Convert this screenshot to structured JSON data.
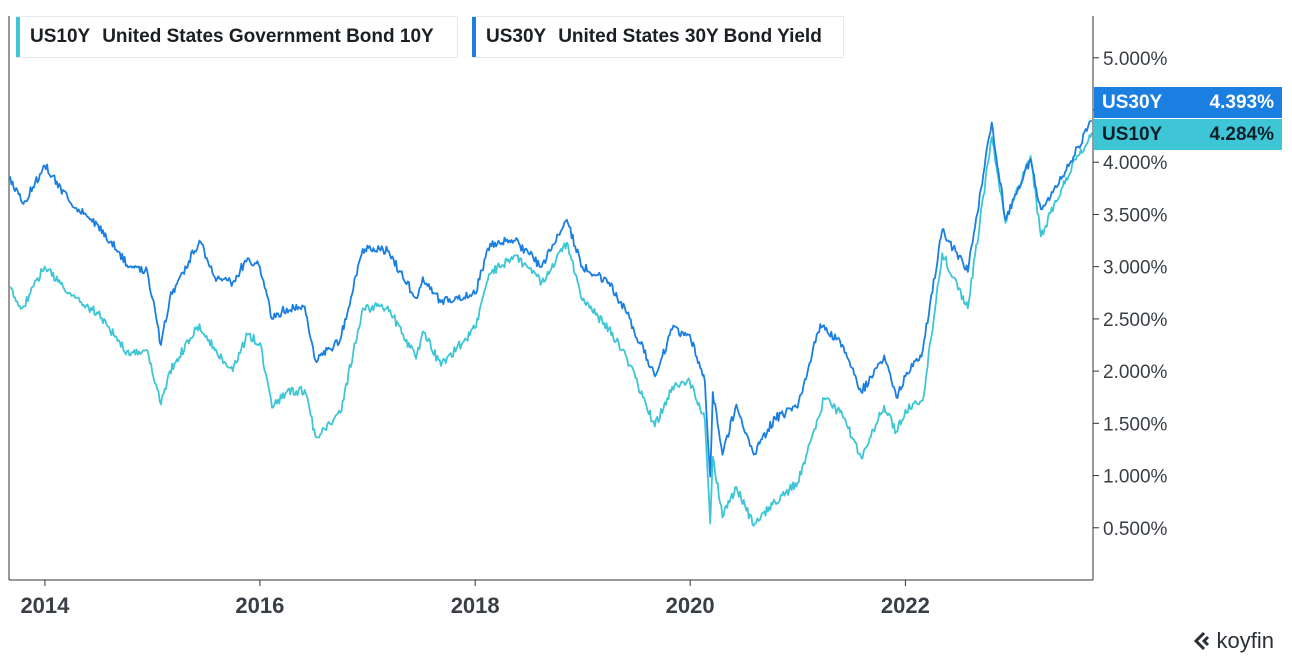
{
  "brand": {
    "name": "koyfin"
  },
  "chart_data": {
    "type": "line",
    "x_range": [
      "2013-09-01",
      "2023-09-30"
    ],
    "ylim": [
      0.0,
      5.4
    ],
    "y_ticks": [
      0.5,
      1.0,
      1.5,
      2.0,
      2.5,
      3.0,
      3.5,
      4.0,
      4.5,
      5.0
    ],
    "y_tick_labels": [
      "0.500%",
      "1.000%",
      "1.500%",
      "2.000%",
      "2.500%",
      "3.000%",
      "3.500%",
      "4.000%",
      "",
      "5.000%"
    ],
    "x_ticks": [
      "2014-01-01",
      "2016-01-01",
      "2018-01-01",
      "2020-01-01",
      "2022-01-01"
    ],
    "x_tick_labels": [
      "2014",
      "2016",
      "2018",
      "2020",
      "2022"
    ],
    "grid": false,
    "legend_position": "top-left",
    "series": [
      {
        "code": "US10Y",
        "name": "United States Government Bond 10Y",
        "color": "#3ec6d6",
        "last_value": "4.284%",
        "points": [
          [
            "2013-09-01",
            2.8
          ],
          [
            "2013-10-15",
            2.6
          ],
          [
            "2013-12-31",
            3.0
          ],
          [
            "2014-04-01",
            2.72
          ],
          [
            "2014-07-01",
            2.55
          ],
          [
            "2014-10-15",
            2.15
          ],
          [
            "2014-12-15",
            2.2
          ],
          [
            "2015-01-30",
            1.68
          ],
          [
            "2015-03-01",
            2.0
          ],
          [
            "2015-06-10",
            2.45
          ],
          [
            "2015-08-01",
            2.2
          ],
          [
            "2015-10-01",
            2.0
          ],
          [
            "2015-11-20",
            2.35
          ],
          [
            "2016-01-01",
            2.27
          ],
          [
            "2016-02-11",
            1.65
          ],
          [
            "2016-04-01",
            1.8
          ],
          [
            "2016-06-01",
            1.82
          ],
          [
            "2016-07-08",
            1.37
          ],
          [
            "2016-09-30",
            1.6
          ],
          [
            "2016-12-15",
            2.6
          ],
          [
            "2017-03-10",
            2.62
          ],
          [
            "2017-06-14",
            2.12
          ],
          [
            "2017-07-07",
            2.38
          ],
          [
            "2017-09-07",
            2.05
          ],
          [
            "2017-12-31",
            2.41
          ],
          [
            "2018-02-21",
            2.93
          ],
          [
            "2018-05-17",
            3.11
          ],
          [
            "2018-08-15",
            2.85
          ],
          [
            "2018-11-08",
            3.23
          ],
          [
            "2018-12-31",
            2.68
          ],
          [
            "2019-03-31",
            2.41
          ],
          [
            "2019-06-01",
            2.12
          ],
          [
            "2019-09-03",
            1.47
          ],
          [
            "2019-11-01",
            1.85
          ],
          [
            "2019-12-31",
            1.9
          ],
          [
            "2020-02-20",
            1.53
          ],
          [
            "2020-03-09",
            0.54
          ],
          [
            "2020-03-18",
            1.18
          ],
          [
            "2020-04-20",
            0.6
          ],
          [
            "2020-06-06",
            0.89
          ],
          [
            "2020-08-04",
            0.52
          ],
          [
            "2020-10-15",
            0.75
          ],
          [
            "2020-12-31",
            0.93
          ],
          [
            "2021-03-31",
            1.74
          ],
          [
            "2021-06-01",
            1.58
          ],
          [
            "2021-08-04",
            1.17
          ],
          [
            "2021-10-21",
            1.67
          ],
          [
            "2021-12-01",
            1.42
          ],
          [
            "2022-01-01",
            1.63
          ],
          [
            "2022-03-01",
            1.72
          ],
          [
            "2022-05-06",
            3.13
          ],
          [
            "2022-08-01",
            2.6
          ],
          [
            "2022-10-21",
            4.24
          ],
          [
            "2022-12-07",
            3.42
          ],
          [
            "2023-03-02",
            4.06
          ],
          [
            "2023-04-06",
            3.29
          ],
          [
            "2023-07-01",
            3.85
          ],
          [
            "2023-09-26",
            4.284
          ]
        ]
      },
      {
        "code": "US30Y",
        "name": "United States 30Y Bond Yield",
        "color": "#1a7fe0",
        "last_value": "4.393%",
        "points": [
          [
            "2013-09-01",
            3.85
          ],
          [
            "2013-10-20",
            3.6
          ],
          [
            "2013-12-31",
            3.97
          ],
          [
            "2014-04-01",
            3.6
          ],
          [
            "2014-07-01",
            3.4
          ],
          [
            "2014-10-15",
            3.0
          ],
          [
            "2014-12-15",
            2.95
          ],
          [
            "2015-01-30",
            2.25
          ],
          [
            "2015-03-01",
            2.7
          ],
          [
            "2015-06-10",
            3.25
          ],
          [
            "2015-08-01",
            2.9
          ],
          [
            "2015-10-01",
            2.85
          ],
          [
            "2015-11-20",
            3.08
          ],
          [
            "2016-01-01",
            3.0
          ],
          [
            "2016-02-11",
            2.5
          ],
          [
            "2016-04-01",
            2.6
          ],
          [
            "2016-06-01",
            2.62
          ],
          [
            "2016-07-08",
            2.1
          ],
          [
            "2016-09-30",
            2.3
          ],
          [
            "2016-12-15",
            3.17
          ],
          [
            "2017-03-10",
            3.15
          ],
          [
            "2017-06-14",
            2.7
          ],
          [
            "2017-07-07",
            2.9
          ],
          [
            "2017-09-07",
            2.66
          ],
          [
            "2017-12-31",
            2.74
          ],
          [
            "2018-02-21",
            3.22
          ],
          [
            "2018-05-17",
            3.25
          ],
          [
            "2018-08-15",
            3.0
          ],
          [
            "2018-11-08",
            3.45
          ],
          [
            "2018-12-31",
            3.0
          ],
          [
            "2019-03-31",
            2.85
          ],
          [
            "2019-06-01",
            2.55
          ],
          [
            "2019-09-03",
            1.95
          ],
          [
            "2019-11-01",
            2.4
          ],
          [
            "2019-12-31",
            2.35
          ],
          [
            "2020-02-20",
            1.9
          ],
          [
            "2020-03-09",
            0.99
          ],
          [
            "2020-03-18",
            1.8
          ],
          [
            "2020-04-20",
            1.2
          ],
          [
            "2020-06-06",
            1.68
          ],
          [
            "2020-08-04",
            1.2
          ],
          [
            "2020-10-15",
            1.55
          ],
          [
            "2020-12-31",
            1.65
          ],
          [
            "2021-03-18",
            2.45
          ],
          [
            "2021-06-01",
            2.25
          ],
          [
            "2021-08-04",
            1.8
          ],
          [
            "2021-10-21",
            2.15
          ],
          [
            "2021-12-01",
            1.75
          ],
          [
            "2022-01-01",
            1.95
          ],
          [
            "2022-03-01",
            2.2
          ],
          [
            "2022-05-06",
            3.35
          ],
          [
            "2022-08-01",
            2.95
          ],
          [
            "2022-10-21",
            4.38
          ],
          [
            "2022-12-07",
            3.45
          ],
          [
            "2023-03-02",
            4.03
          ],
          [
            "2023-04-06",
            3.55
          ],
          [
            "2023-07-01",
            3.92
          ],
          [
            "2023-09-26",
            4.393
          ]
        ]
      }
    ]
  }
}
